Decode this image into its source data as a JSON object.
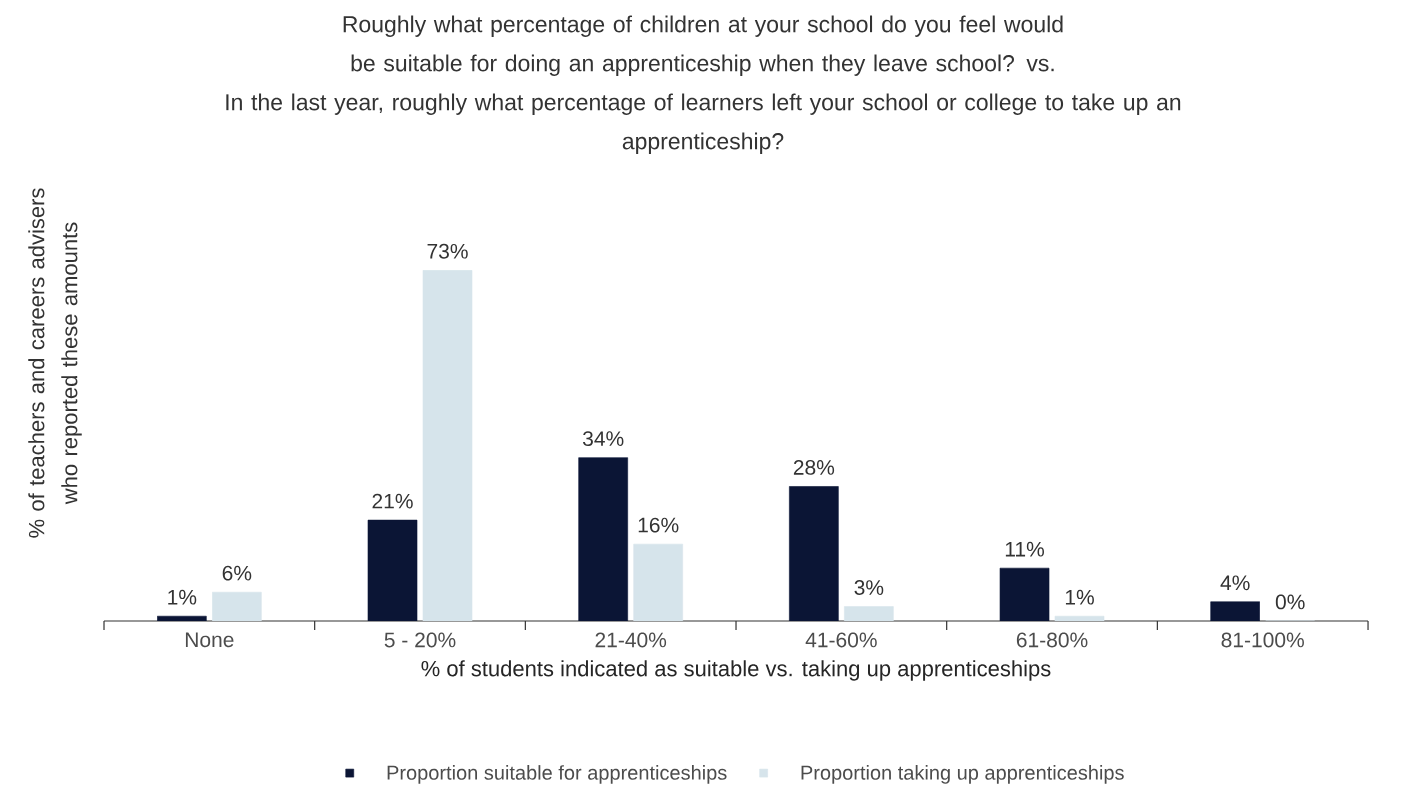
{
  "chart_data": {
    "type": "bar",
    "title": "Roughly what percentage of children at your school do you feel would be suitable for doing an apprenticeship when they leave school? vs.",
    "subtitle": "In the last year, roughly what percentage of learners left your school or college to take up an apprenticeship?",
    "xlabel": "% of students indicated as suitable vs. taking up apprenticeships",
    "ylabel": "% of teachers and careers advisers who reported these amounts",
    "categories": [
      "None",
      "5 - 20%",
      "21-40%",
      "41-60%",
      "61-80%",
      "81-100%"
    ],
    "series": [
      {
        "name": "Proportion suitable for apprenticeships",
        "color": "#0b1535",
        "values": [
          1,
          21,
          34,
          28,
          11,
          4
        ],
        "value_labels": [
          "1%",
          "21%",
          "34%",
          "28%",
          "11%",
          "4%"
        ]
      },
      {
        "name": "Proportion taking up apprenticeships",
        "color": "#d6e4eb",
        "values": [
          6,
          73,
          16,
          3,
          1,
          0
        ],
        "value_labels": [
          "6%",
          "73%",
          "16%",
          "3%",
          "1%",
          "0%"
        ]
      }
    ],
    "legend": "bottom"
  }
}
